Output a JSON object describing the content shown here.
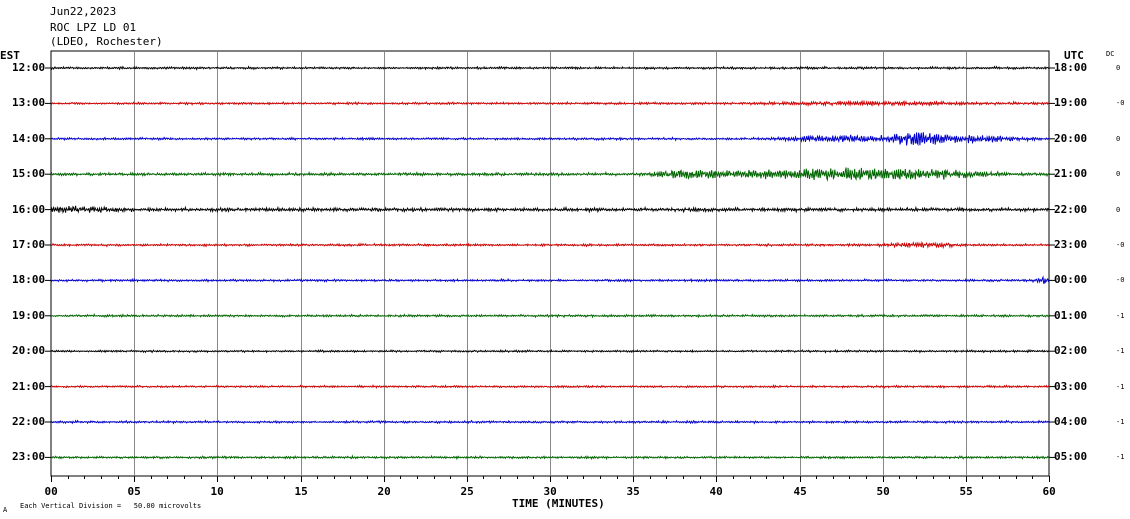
{
  "header": {
    "date": "Jun22,2023",
    "station": "ROC LPZ LD 01",
    "network": "(LDEO, Rochester)"
  },
  "left_axis_label": "EST",
  "right_axis_label": "UTC",
  "dc_label": "DC",
  "xlabel": "TIME (MINUTES)",
  "footer": {
    "scale_text": "Each Vertical Division =   50.00 microvolts",
    "corner": "A"
  },
  "colors": {
    "black": "#000000",
    "red": "#cc0000",
    "blue": "#0000cc",
    "green": "#006600",
    "grid": "#888888"
  },
  "chart_data": {
    "type": "line",
    "x_range": [
      0,
      60
    ],
    "x_ticks": [
      "00",
      "05",
      "10",
      "15",
      "20",
      "25",
      "30",
      "35",
      "40",
      "45",
      "50",
      "55",
      "60"
    ],
    "grid": true,
    "rows": [
      {
        "est": "12:00",
        "utc": "18:00",
        "dc": "0",
        "color": "black",
        "base_amp": 1.0,
        "events": []
      },
      {
        "est": "13:00",
        "utc": "19:00",
        "dc": "-0",
        "color": "red",
        "base_amp": 1.0,
        "events": [
          {
            "t": 49.5,
            "w": 6,
            "a": 1.2
          }
        ]
      },
      {
        "est": "14:00",
        "utc": "20:00",
        "dc": "0",
        "color": "blue",
        "base_amp": 1.0,
        "events": [
          {
            "t": 47.5,
            "w": 3,
            "a": 3
          },
          {
            "t": 52.0,
            "w": 1.5,
            "a": 6
          },
          {
            "t": 55.5,
            "w": 2.5,
            "a": 3
          }
        ]
      },
      {
        "est": "15:00",
        "utc": "21:00",
        "dc": "0",
        "color": "green",
        "base_amp": 1.3,
        "events": [
          {
            "t": 38.5,
            "w": 2,
            "a": 4
          },
          {
            "t": 42.5,
            "w": 2,
            "a": 3
          },
          {
            "t": 47.5,
            "w": 3,
            "a": 6
          },
          {
            "t": 53.0,
            "w": 3,
            "a": 4
          }
        ]
      },
      {
        "est": "16:00",
        "utc": "22:00",
        "dc": "0",
        "color": "black",
        "base_amp": 1.6,
        "events": [
          {
            "t": 1.5,
            "w": 2,
            "a": 2
          }
        ]
      },
      {
        "est": "17:00",
        "utc": "23:00",
        "dc": "-0",
        "color": "red",
        "base_amp": 1.0,
        "events": [
          {
            "t": 52.5,
            "w": 2,
            "a": 2
          }
        ]
      },
      {
        "est": "18:00",
        "utc": "00:00",
        "dc": "-0",
        "color": "blue",
        "base_amp": 1.0,
        "events": [
          {
            "t": 59.6,
            "w": 0.4,
            "a": 3
          }
        ]
      },
      {
        "est": "19:00",
        "utc": "01:00",
        "dc": "-1",
        "color": "green",
        "base_amp": 1.0,
        "events": []
      },
      {
        "est": "20:00",
        "utc": "02:00",
        "dc": "-1",
        "color": "black",
        "base_amp": 0.9,
        "events": []
      },
      {
        "est": "21:00",
        "utc": "03:00",
        "dc": "-1",
        "color": "red",
        "base_amp": 0.9,
        "events": []
      },
      {
        "est": "22:00",
        "utc": "04:00",
        "dc": "-1",
        "color": "blue",
        "base_amp": 1.0,
        "events": []
      },
      {
        "est": "23:00",
        "utc": "05:00",
        "dc": "-1",
        "color": "green",
        "base_amp": 1.0,
        "events": []
      }
    ]
  }
}
